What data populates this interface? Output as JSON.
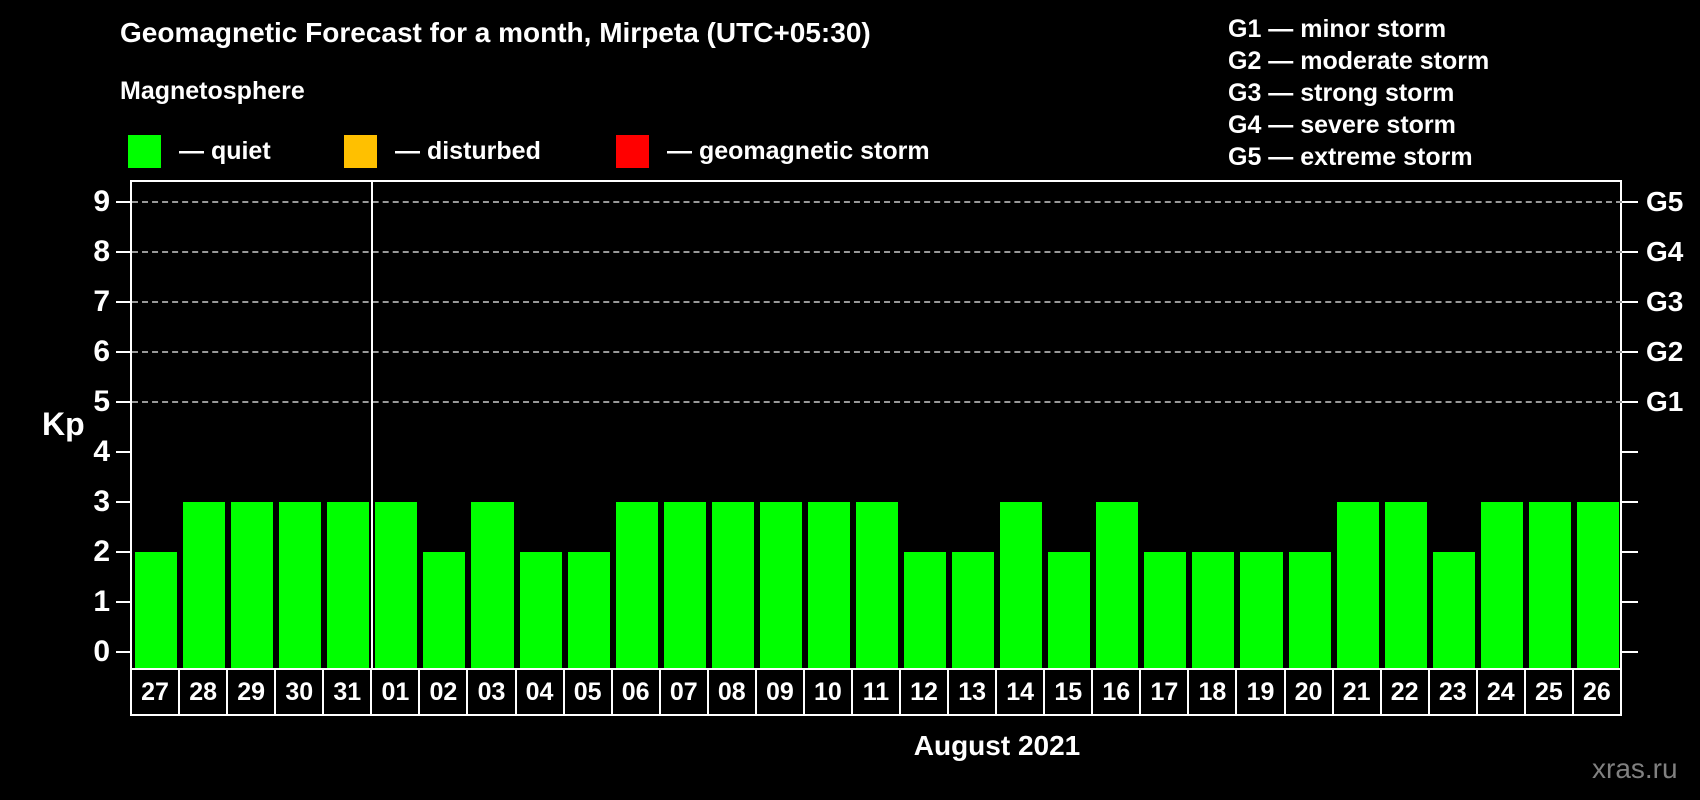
{
  "title": "Geomagnetic Forecast for a month, Mirpeta (UTC+05:30)",
  "subtitle": "Magnetosphere",
  "magnetosphere_legend": [
    {
      "name": "quiet",
      "label": "— quiet",
      "color": "#00ff00"
    },
    {
      "name": "disturbed",
      "label": "— disturbed",
      "color": "#ffc000"
    },
    {
      "name": "geomagnetic-storm",
      "label": "— geomagnetic storm",
      "color": "#ff0000"
    }
  ],
  "g_scale_legend": [
    "G1 — minor storm",
    "G2 — moderate storm",
    "G3 — strong storm",
    "G4 — severe storm",
    "G5 — extreme storm"
  ],
  "footer": {
    "xaxis_title": "August 2021",
    "watermark": "xras.ru"
  },
  "chart_data": {
    "type": "bar",
    "title": "Geomagnetic Forecast for a month, Mirpeta (UTC+05:30)",
    "ylabel": "Kp",
    "xlabel": "August 2021",
    "categories": [
      "27",
      "28",
      "29",
      "30",
      "31",
      "01",
      "02",
      "03",
      "04",
      "05",
      "06",
      "07",
      "08",
      "09",
      "10",
      "11",
      "12",
      "13",
      "14",
      "15",
      "16",
      "17",
      "18",
      "19",
      "20",
      "21",
      "22",
      "23",
      "24",
      "25",
      "26"
    ],
    "values": [
      2,
      3,
      3,
      3,
      3,
      3,
      2,
      3,
      2,
      2,
      3,
      3,
      3,
      3,
      3,
      3,
      2,
      2,
      3,
      2,
      3,
      2,
      2,
      2,
      2,
      3,
      3,
      2,
      3,
      3,
      3
    ],
    "bar_color": "#00ff00",
    "ylim": [
      0,
      9
    ],
    "yticks": [
      0,
      1,
      2,
      3,
      4,
      5,
      6,
      7,
      8,
      9
    ],
    "grid_kp_levels": [
      5,
      6,
      7,
      8,
      9
    ],
    "right_axis_labels": [
      {
        "label": "G1",
        "kp": 5
      },
      {
        "label": "G2",
        "kp": 6
      },
      {
        "label": "G3",
        "kp": 7
      },
      {
        "label": "G4",
        "kp": 8
      },
      {
        "label": "G5",
        "kp": 9
      }
    ],
    "month_separator_after_index": 4,
    "legend_position": "top-left",
    "grid": "dashed horizontal at G levels only"
  }
}
